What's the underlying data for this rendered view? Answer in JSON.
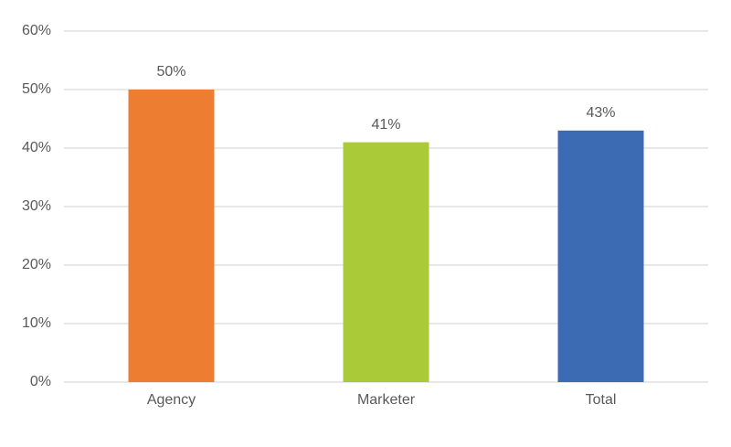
{
  "chart_data": {
    "type": "bar",
    "categories": [
      "Agency",
      "Marketer",
      "Total"
    ],
    "values": [
      50,
      41,
      43
    ],
    "value_labels": [
      "50%",
      "41%",
      "43%"
    ],
    "colors": [
      "#ed7d31",
      "#aacb37",
      "#3d6bb3"
    ],
    "ylim": [
      0,
      60
    ],
    "yticks": [
      {
        "value": 0,
        "label": "0%"
      },
      {
        "value": 10,
        "label": "10%"
      },
      {
        "value": 20,
        "label": "20%"
      },
      {
        "value": 30,
        "label": "30%"
      },
      {
        "value": 40,
        "label": "40%"
      },
      {
        "value": 50,
        "label": "50%"
      },
      {
        "value": 60,
        "label": "60%"
      }
    ],
    "grid": true
  }
}
